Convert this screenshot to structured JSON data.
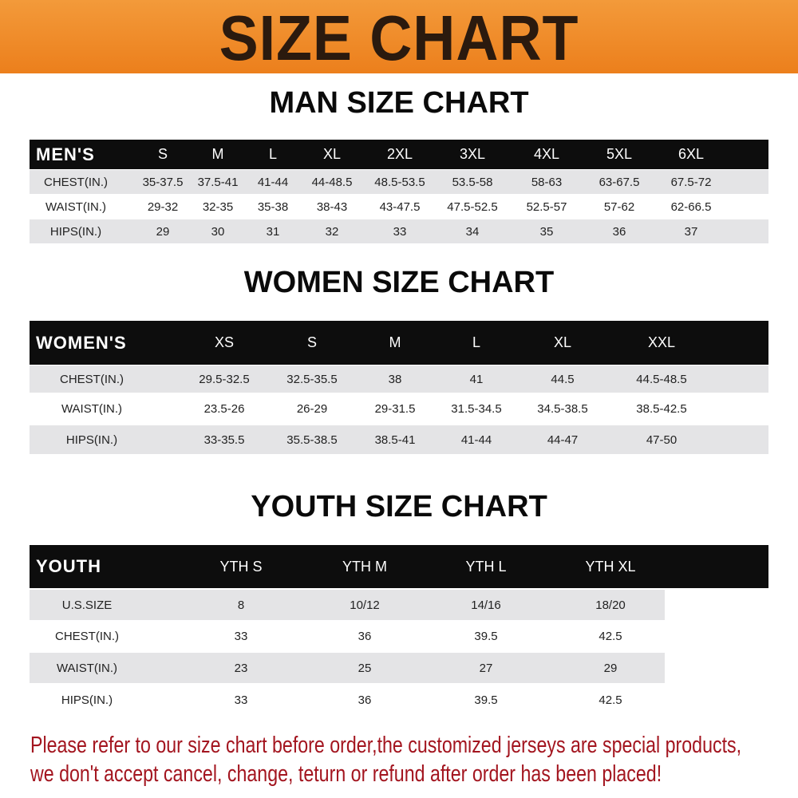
{
  "banner_title": "SIZE CHART",
  "men": {
    "title": "MAN SIZE CHART",
    "header": [
      "MEN'S",
      "S",
      "M",
      "L",
      "XL",
      "2XL",
      "3XL",
      "4XL",
      "5XL",
      "6XL"
    ],
    "rows": [
      [
        "CHEST(IN.)",
        "35-37.5",
        "37.5-41",
        "41-44",
        "44-48.5",
        "48.5-53.5",
        "53.5-58",
        "58-63",
        "63-67.5",
        "67.5-72"
      ],
      [
        "WAIST(IN.)",
        "29-32",
        "32-35",
        "35-38",
        "38-43",
        "43-47.5",
        "47.5-52.5",
        "52.5-57",
        "57-62",
        "62-66.5"
      ],
      [
        "HIPS(IN.)",
        "29",
        "30",
        "31",
        "32",
        "33",
        "34",
        "35",
        "36",
        "37"
      ]
    ]
  },
  "women": {
    "title": "WOMEN SIZE CHART",
    "header": [
      "WOMEN'S",
      "XS",
      "S",
      "M",
      "L",
      "XL",
      "XXL"
    ],
    "rows": [
      [
        "CHEST(IN.)",
        "29.5-32.5",
        "32.5-35.5",
        "38",
        "41",
        "44.5",
        "44.5-48.5"
      ],
      [
        "WAIST(IN.)",
        "23.5-26",
        "26-29",
        "29-31.5",
        "31.5-34.5",
        "34.5-38.5",
        "38.5-42.5"
      ],
      [
        "HIPS(IN.)",
        "33-35.5",
        "35.5-38.5",
        "38.5-41",
        "41-44",
        "44-47",
        "47-50"
      ]
    ]
  },
  "youth": {
    "title": "YOUTH SIZE CHART",
    "header": [
      "YOUTH",
      "YTH S",
      "YTH M",
      "YTH L",
      "YTH XL"
    ],
    "rows": [
      [
        "U.S.SIZE",
        "8",
        "10/12",
        "14/16",
        "18/20"
      ],
      [
        "CHEST(IN.)",
        "33",
        "36",
        "39.5",
        "42.5"
      ],
      [
        "WAIST(IN.)",
        "23",
        "25",
        "27",
        "29"
      ],
      [
        "HIPS(IN.)",
        "33",
        "36",
        "39.5",
        "42.5"
      ]
    ]
  },
  "footer": {
    "line1": "Please refer to our size chart before order,the customized jerseys are special products,",
    "line2": "we don't accept cancel, change, teturn or refund after order has been placed!"
  },
  "colors": {
    "banner": "#ec7f1c",
    "header_row": "#0d0d0d",
    "shaded_row": "#e4e4e6",
    "notice_text": "#a3151f"
  }
}
